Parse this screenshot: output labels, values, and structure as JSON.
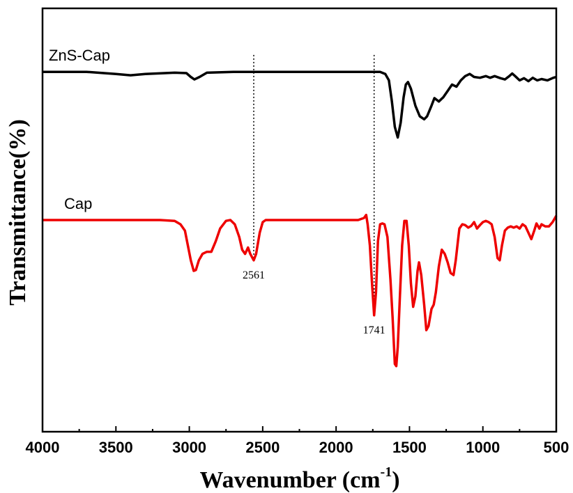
{
  "chart_data": {
    "type": "line",
    "title": "",
    "xlabel": "Wavenumber (cm",
    "xlabel_sup": "-1",
    "xlabel_close": ")",
    "ylabel": "Transmittance(%)",
    "xlim": [
      4000,
      500
    ],
    "ylim": [
      0,
      10
    ],
    "x_ticks": [
      4000,
      3500,
      3000,
      2500,
      2000,
      1500,
      1000,
      500
    ],
    "x_tick_labels": [
      "4000",
      "3500",
      "3000",
      "2500",
      "2000",
      "1500",
      "1000",
      "500"
    ],
    "y_ticks_shown": false,
    "series": [
      {
        "name": "ZnS-Cap",
        "color": "#000000",
        "points": [
          [
            4000,
            8.5
          ],
          [
            3700,
            8.5
          ],
          [
            3500,
            8.45
          ],
          [
            3400,
            8.42
          ],
          [
            3300,
            8.45
          ],
          [
            3100,
            8.48
          ],
          [
            3020,
            8.47
          ],
          [
            2990,
            8.38
          ],
          [
            2965,
            8.32
          ],
          [
            2930,
            8.38
          ],
          [
            2880,
            8.48
          ],
          [
            2700,
            8.5
          ],
          [
            2500,
            8.5
          ],
          [
            2000,
            8.5
          ],
          [
            1700,
            8.5
          ],
          [
            1665,
            8.45
          ],
          [
            1640,
            8.3
          ],
          [
            1620,
            7.8
          ],
          [
            1600,
            7.2
          ],
          [
            1580,
            6.95
          ],
          [
            1560,
            7.3
          ],
          [
            1540,
            7.9
          ],
          [
            1525,
            8.2
          ],
          [
            1510,
            8.26
          ],
          [
            1490,
            8.1
          ],
          [
            1460,
            7.7
          ],
          [
            1430,
            7.45
          ],
          [
            1400,
            7.38
          ],
          [
            1380,
            7.45
          ],
          [
            1350,
            7.7
          ],
          [
            1330,
            7.88
          ],
          [
            1300,
            7.8
          ],
          [
            1270,
            7.9
          ],
          [
            1240,
            8.05
          ],
          [
            1210,
            8.2
          ],
          [
            1180,
            8.15
          ],
          [
            1150,
            8.3
          ],
          [
            1120,
            8.4
          ],
          [
            1090,
            8.45
          ],
          [
            1060,
            8.38
          ],
          [
            1020,
            8.36
          ],
          [
            980,
            8.4
          ],
          [
            950,
            8.36
          ],
          [
            920,
            8.4
          ],
          [
            880,
            8.35
          ],
          [
            850,
            8.32
          ],
          [
            820,
            8.4
          ],
          [
            800,
            8.46
          ],
          [
            780,
            8.4
          ],
          [
            750,
            8.3
          ],
          [
            720,
            8.35
          ],
          [
            690,
            8.28
          ],
          [
            660,
            8.36
          ],
          [
            630,
            8.3
          ],
          [
            600,
            8.33
          ],
          [
            560,
            8.3
          ],
          [
            520,
            8.36
          ],
          [
            500,
            8.38
          ]
        ],
        "annotation_x": 1741
      },
      {
        "name": "Cap",
        "color": "#ee0000",
        "points": [
          [
            4000,
            5.0
          ],
          [
            3500,
            5.0
          ],
          [
            3200,
            5.0
          ],
          [
            3100,
            4.98
          ],
          [
            3060,
            4.9
          ],
          [
            3030,
            4.75
          ],
          [
            3010,
            4.4
          ],
          [
            2990,
            4.05
          ],
          [
            2970,
            3.8
          ],
          [
            2955,
            3.82
          ],
          [
            2935,
            4.05
          ],
          [
            2910,
            4.2
          ],
          [
            2880,
            4.25
          ],
          [
            2850,
            4.25
          ],
          [
            2820,
            4.5
          ],
          [
            2790,
            4.8
          ],
          [
            2750,
            4.98
          ],
          [
            2720,
            5.0
          ],
          [
            2690,
            4.9
          ],
          [
            2660,
            4.6
          ],
          [
            2640,
            4.3
          ],
          [
            2620,
            4.2
          ],
          [
            2600,
            4.35
          ],
          [
            2585,
            4.2
          ],
          [
            2561,
            4.05
          ],
          [
            2545,
            4.2
          ],
          [
            2520,
            4.7
          ],
          [
            2500,
            4.95
          ],
          [
            2480,
            5.0
          ],
          [
            2200,
            5.0
          ],
          [
            1850,
            5.0
          ],
          [
            1810,
            5.05
          ],
          [
            1795,
            5.12
          ],
          [
            1785,
            4.9
          ],
          [
            1770,
            4.4
          ],
          [
            1755,
            3.5
          ],
          [
            1741,
            2.75
          ],
          [
            1728,
            3.3
          ],
          [
            1715,
            4.5
          ],
          [
            1700,
            4.9
          ],
          [
            1685,
            4.92
          ],
          [
            1670,
            4.9
          ],
          [
            1650,
            4.6
          ],
          [
            1630,
            3.6
          ],
          [
            1615,
            2.7
          ],
          [
            1600,
            1.6
          ],
          [
            1590,
            1.55
          ],
          [
            1580,
            2.0
          ],
          [
            1565,
            3.2
          ],
          [
            1550,
            4.4
          ],
          [
            1535,
            4.98
          ],
          [
            1520,
            4.98
          ],
          [
            1505,
            4.4
          ],
          [
            1490,
            3.5
          ],
          [
            1475,
            2.95
          ],
          [
            1460,
            3.2
          ],
          [
            1445,
            3.8
          ],
          [
            1435,
            4.0
          ],
          [
            1420,
            3.7
          ],
          [
            1400,
            3.0
          ],
          [
            1385,
            2.4
          ],
          [
            1370,
            2.5
          ],
          [
            1350,
            2.9
          ],
          [
            1335,
            3.0
          ],
          [
            1320,
            3.3
          ],
          [
            1300,
            3.9
          ],
          [
            1280,
            4.3
          ],
          [
            1260,
            4.2
          ],
          [
            1240,
            4.0
          ],
          [
            1220,
            3.75
          ],
          [
            1200,
            3.7
          ],
          [
            1185,
            4.05
          ],
          [
            1170,
            4.5
          ],
          [
            1160,
            4.8
          ],
          [
            1140,
            4.9
          ],
          [
            1120,
            4.88
          ],
          [
            1100,
            4.82
          ],
          [
            1080,
            4.86
          ],
          [
            1060,
            4.95
          ],
          [
            1040,
            4.8
          ],
          [
            1020,
            4.88
          ],
          [
            1000,
            4.95
          ],
          [
            980,
            4.98
          ],
          [
            960,
            4.95
          ],
          [
            940,
            4.9
          ],
          [
            920,
            4.6
          ],
          [
            900,
            4.1
          ],
          [
            885,
            4.05
          ],
          [
            870,
            4.4
          ],
          [
            850,
            4.75
          ],
          [
            830,
            4.82
          ],
          [
            810,
            4.85
          ],
          [
            790,
            4.82
          ],
          [
            770,
            4.85
          ],
          [
            750,
            4.8
          ],
          [
            730,
            4.9
          ],
          [
            710,
            4.85
          ],
          [
            690,
            4.7
          ],
          [
            670,
            4.55
          ],
          [
            650,
            4.75
          ],
          [
            635,
            4.92
          ],
          [
            615,
            4.8
          ],
          [
            600,
            4.9
          ],
          [
            575,
            4.85
          ],
          [
            550,
            4.85
          ],
          [
            525,
            4.95
          ],
          [
            500,
            5.1
          ]
        ],
        "annotations": [
          {
            "x": 2561,
            "label": "2561"
          },
          {
            "x": 1741,
            "label": "1741"
          }
        ]
      }
    ]
  }
}
